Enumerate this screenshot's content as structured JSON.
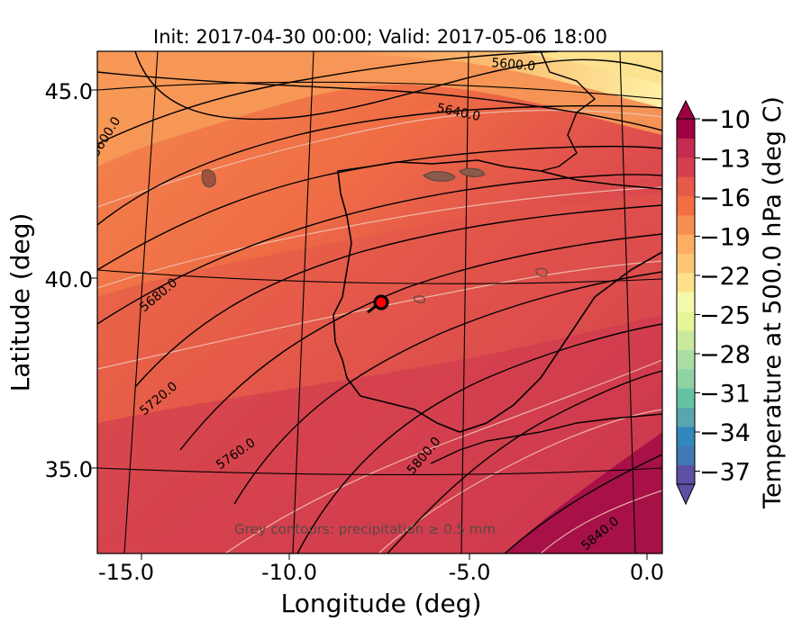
{
  "title": "Init: 2017-04-30 00:00; Valid: 2017-05-06 18:00",
  "x_axis": {
    "label": "Longitude (deg)",
    "ticks": [
      "-15.0",
      "-10.0",
      "-5.0",
      "0.0"
    ]
  },
  "y_axis": {
    "label": "Latitude (deg)",
    "ticks": [
      "35.0",
      "40.0",
      "45.0"
    ]
  },
  "colorbar": {
    "label": "Temperature at 500.0 hPa (deg C)",
    "ticks": [
      "−10",
      "−13",
      "−16",
      "−19",
      "−22",
      "−25",
      "−28",
      "−31",
      "−34",
      "−37"
    ],
    "range": [
      -38,
      -10
    ],
    "colors": [
      "#5e4fa2",
      "#3f79b5",
      "#3288bd",
      "#5aa5b0",
      "#66c2a5",
      "#8fd2a4",
      "#abdda4",
      "#cbe99d",
      "#e6f598",
      "#f4faad",
      "#fee08b",
      "#fdc574",
      "#fdae61",
      "#f98e52",
      "#f46d43",
      "#e55a48",
      "#d53e4f",
      "#c52a50",
      "#9e0142"
    ]
  },
  "contour_labels": [
    "5600.0",
    "5640.0",
    "5600.0",
    "5680.0",
    "5720.0",
    "5760.0",
    "5800.0",
    "5840.0"
  ],
  "annotation": "Grey contours: precipitation ≥ 0.5 mm",
  "marker": {
    "lon": -7.6,
    "lat": 39.3,
    "color": "#ff0000"
  }
}
